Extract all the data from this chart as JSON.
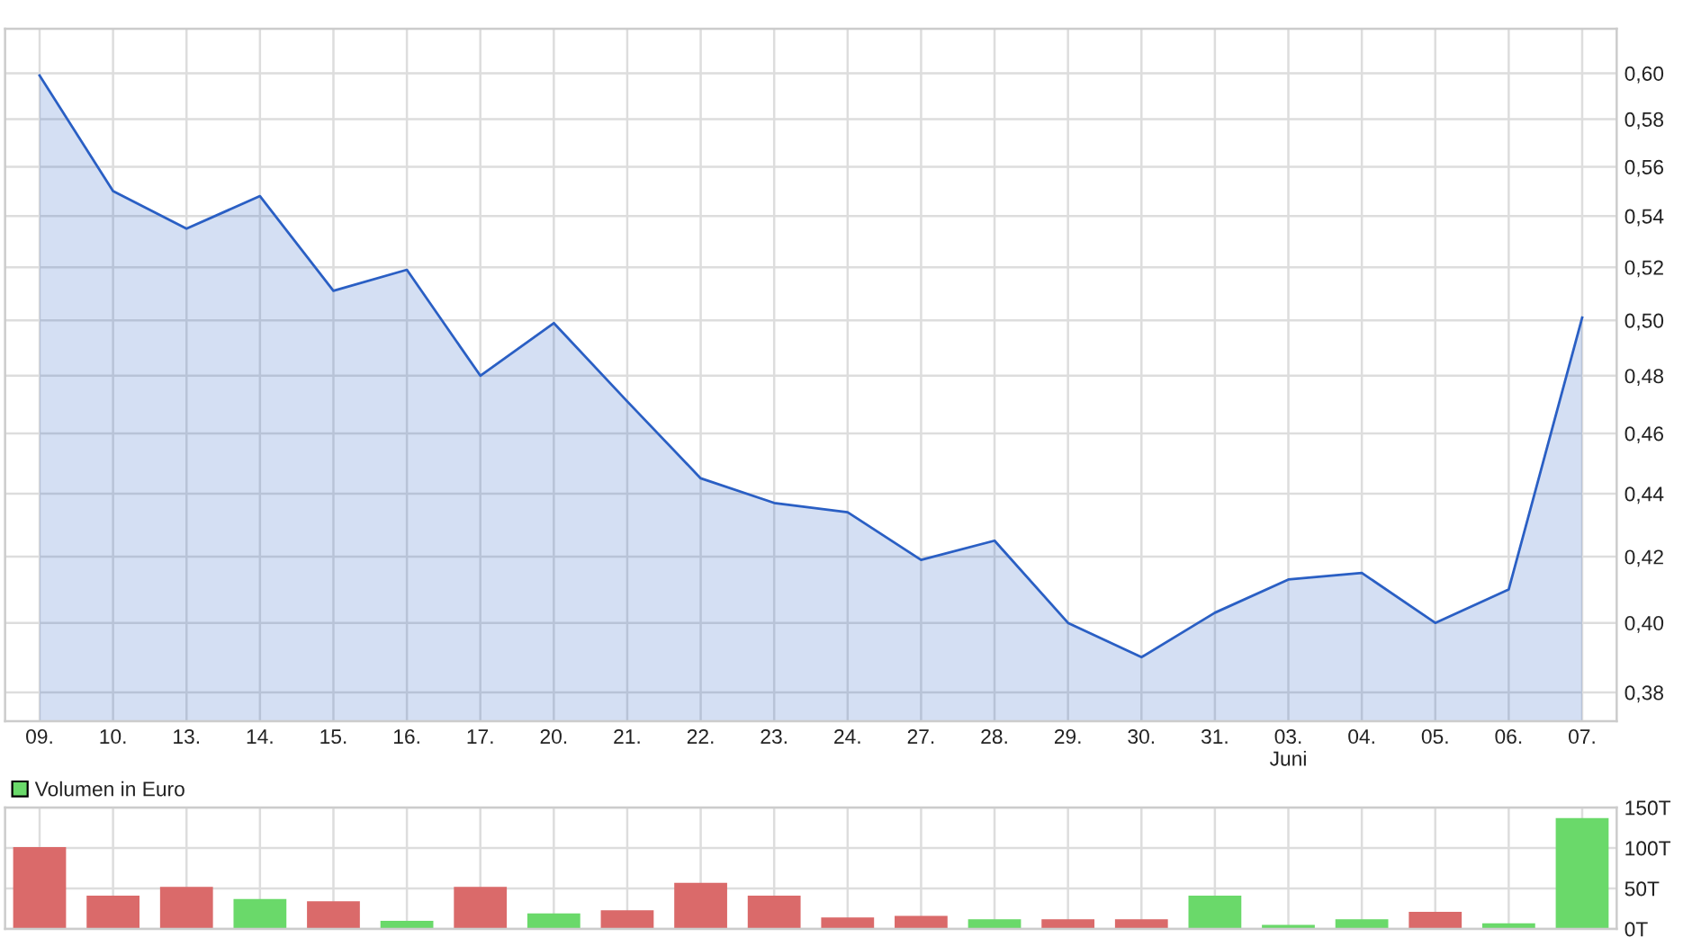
{
  "chart_data": [
    {
      "type": "area",
      "categories": [
        "09.",
        "10.",
        "13.",
        "14.",
        "15.",
        "16.",
        "17.",
        "20.",
        "21.",
        "22.",
        "23.",
        "24.",
        "27.",
        "28.",
        "29.",
        "30.",
        "31.",
        "03.\nJuni",
        "04.",
        "05.",
        "06.",
        "07."
      ],
      "values": [
        0.599,
        0.55,
        0.535,
        0.548,
        0.511,
        0.519,
        0.48,
        0.499,
        0.471,
        0.445,
        0.437,
        0.434,
        0.419,
        0.425,
        0.4,
        0.39,
        0.403,
        0.413,
        0.415,
        0.4,
        0.41,
        0.501
      ],
      "color": "#2a5fc4",
      "log": true,
      "ylim": [
        0.372,
        0.62
      ],
      "yticks": [
        {
          "value": 0.38,
          "label": "0,38"
        },
        {
          "value": 0.4,
          "label": "0,40"
        },
        {
          "value": 0.42,
          "label": "0,42"
        },
        {
          "value": 0.44,
          "label": "0,44"
        },
        {
          "value": 0.46,
          "label": "0,46"
        },
        {
          "value": 0.48,
          "label": "0,48"
        },
        {
          "value": 0.5,
          "label": "0,50"
        },
        {
          "value": 0.52,
          "label": "0,52"
        },
        {
          "value": 0.54,
          "label": "0,54"
        },
        {
          "value": 0.56,
          "label": "0,56"
        },
        {
          "value": 0.58,
          "label": "0,58"
        },
        {
          "value": 0.6,
          "label": "0,60"
        }
      ],
      "grid": true
    },
    {
      "type": "bar",
      "categories": [
        null,
        null,
        null,
        null,
        null,
        null,
        null,
        null,
        null,
        null,
        null,
        null,
        null,
        null,
        null,
        null,
        null,
        null,
        null,
        null,
        null,
        null
      ],
      "series": [
        {
          "name": "Volumen in Euro",
          "color": "#6ad96a",
          "colors": [
            "#da6a6a",
            "#da6a6a",
            "#da6a6a",
            "#6ad96a",
            "#da6a6a",
            "#6ad96a",
            "#da6a6a",
            "#6ad96a",
            "#da6a6a",
            "#da6a6a",
            "#da6a6a",
            "#da6a6a",
            "#da6a6a",
            "#6ad96a",
            "#da6a6a",
            "#da6a6a",
            "#6ad96a",
            "#6ad96a",
            "#6ad96a",
            "#da6a6a",
            "#6ad96a",
            "#6ad96a"
          ],
          "values": [
            101,
            41,
            52,
            37,
            34,
            10,
            52,
            19,
            23,
            57,
            41,
            14,
            16,
            12,
            12,
            12,
            41,
            5,
            12,
            21,
            7,
            137
          ]
        }
      ],
      "ylim": [
        0,
        150
      ],
      "yticks": [
        {
          "value": 0,
          "label": "0T"
        },
        {
          "value": 50,
          "label": "50T"
        },
        {
          "value": 100,
          "label": "100T"
        },
        {
          "value": 150,
          "label": "150T"
        }
      ],
      "grid": true,
      "legend": "top left"
    }
  ]
}
